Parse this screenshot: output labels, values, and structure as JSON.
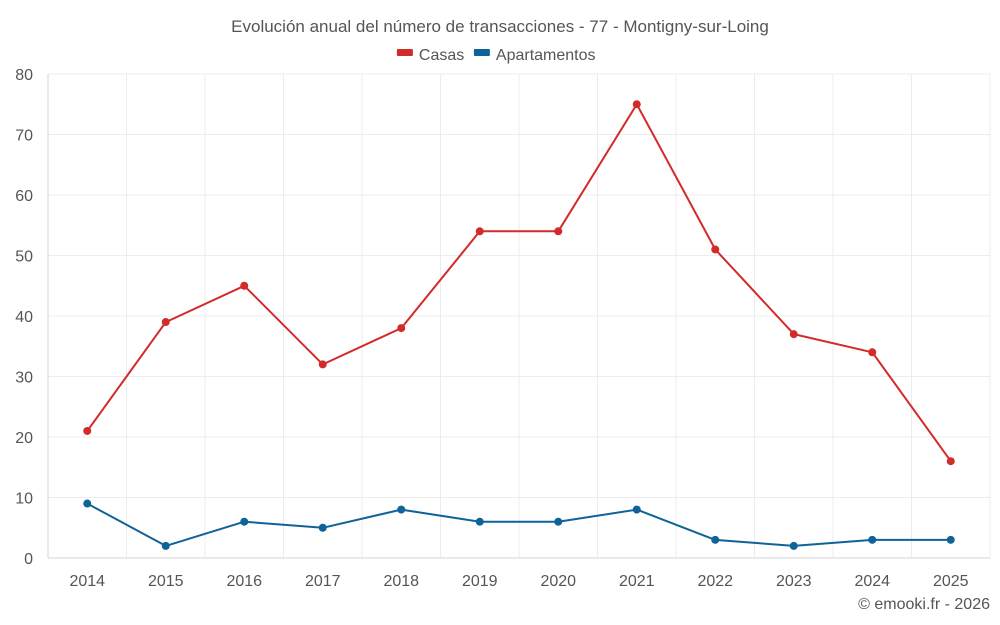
{
  "chart_data": {
    "type": "line",
    "title": "Evolución anual del número de transacciones - 77 - Montigny-sur-Loing",
    "categories": [
      "2014",
      "2015",
      "2016",
      "2017",
      "2018",
      "2019",
      "2020",
      "2021",
      "2022",
      "2023",
      "2024",
      "2025"
    ],
    "series": [
      {
        "name": "Casas",
        "color": "#d32a2a",
        "values": [
          21,
          39,
          45,
          32,
          38,
          54,
          54,
          75,
          51,
          37,
          34,
          16
        ]
      },
      {
        "name": "Apartamentos",
        "color": "#0f6399",
        "values": [
          9,
          2,
          6,
          5,
          8,
          6,
          6,
          8,
          3,
          2,
          3,
          3
        ]
      }
    ],
    "ylim": [
      0,
      80
    ],
    "yticks": [
      "0",
      "10",
      "20",
      "30",
      "40",
      "50",
      "60",
      "70",
      "80"
    ],
    "xlabel": "",
    "ylabel": "",
    "grid": true,
    "legend": "top-center"
  },
  "credit": "© emooki.fr - 2026"
}
